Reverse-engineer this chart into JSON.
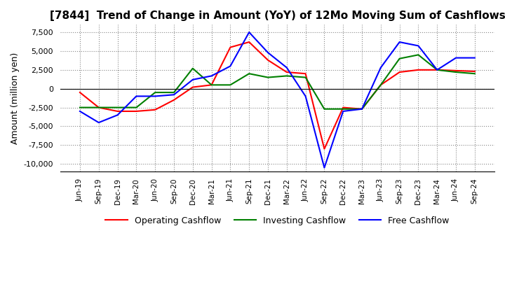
{
  "title": "[7844]  Trend of Change in Amount (YoY) of 12Mo Moving Sum of Cashflows",
  "ylabel": "Amount (million yen)",
  "x_labels": [
    "Jun-19",
    "Sep-19",
    "Dec-19",
    "Mar-20",
    "Jun-20",
    "Sep-20",
    "Dec-20",
    "Mar-21",
    "Jun-21",
    "Sep-21",
    "Dec-21",
    "Mar-22",
    "Jun-22",
    "Sep-22",
    "Dec-22",
    "Mar-23",
    "Jun-23",
    "Sep-23",
    "Dec-23",
    "Mar-24",
    "Jun-24",
    "Sep-24"
  ],
  "operating": [
    -500,
    -2500,
    -3000,
    -3000,
    -2800,
    -1500,
    200,
    500,
    5500,
    6200,
    3800,
    2200,
    2000,
    -8000,
    -2500,
    -2700,
    500,
    2200,
    2500,
    2500,
    2400,
    2300
  ],
  "investing": [
    -2500,
    -2500,
    -2500,
    -2500,
    -500,
    -500,
    2700,
    500,
    500,
    2000,
    1500,
    1700,
    1500,
    -2700,
    -2700,
    -2700,
    500,
    4000,
    4500,
    2500,
    2200,
    2000
  ],
  "free": [
    -3000,
    -4500,
    -3500,
    -1000,
    -1000,
    -800,
    1200,
    1700,
    3000,
    7500,
    4800,
    2800,
    -1000,
    -10500,
    -3000,
    -2700,
    2800,
    6200,
    5700,
    2500,
    4100,
    4100
  ],
  "colors": {
    "operating": "#ff0000",
    "investing": "#008000",
    "free": "#0000ff"
  },
  "ylim": [
    -11000,
    8500
  ],
  "yticks": [
    -10000,
    -7500,
    -5000,
    -2500,
    0,
    2500,
    5000,
    7500
  ],
  "legend_labels": [
    "Operating Cashflow",
    "Investing Cashflow",
    "Free Cashflow"
  ]
}
